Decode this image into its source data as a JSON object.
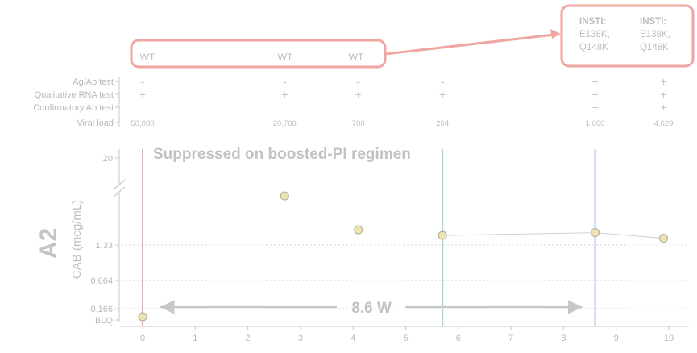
{
  "panel_label": "A2",
  "annotation_title": "Suppressed on boosted-PI regimen",
  "interval_label": "8.6 W",
  "genotype_boxes": {
    "left": [
      "WT",
      "WT",
      "WT"
    ],
    "right": [
      [
        "INSTI:",
        "E138K,",
        "Q148K"
      ],
      [
        "INSTI:",
        "E138K,",
        "Q148K"
      ]
    ]
  },
  "test_table": {
    "row_labels": [
      "Ag/Ab test",
      "Qualitative RNA test",
      "Confirmatory Ab test",
      "Viral load"
    ],
    "columns": [
      {
        "x": 0,
        "agab": "-",
        "rna": "+",
        "confirm": "",
        "viral_load": "50,080"
      },
      {
        "x": 2.7,
        "agab": "-",
        "rna": "+",
        "confirm": "",
        "viral_load": "20,760"
      },
      {
        "x": 4.1,
        "agab": "-",
        "rna": "+",
        "confirm": "",
        "viral_load": "700"
      },
      {
        "x": 5.7,
        "agab": "-",
        "rna": "+",
        "confirm": "",
        "viral_load": "204"
      },
      {
        "x": 8.6,
        "agab": "+",
        "rna": "+",
        "confirm": "+",
        "viral_load": "1,660"
      },
      {
        "x": 9.9,
        "agab": "+",
        "rna": "+",
        "confirm": "+",
        "viral_load": "4,629"
      }
    ]
  },
  "colors": {
    "red_line": "#f2a8a3",
    "green_line": "#a7dccd",
    "blue_line": "#a9c6e6",
    "box_border": "#f0a6a0",
    "point_fill": "#ece4b4",
    "point_stroke": "#b9b39e",
    "arrow": "#c8c8c8"
  },
  "chart_data": {
    "type": "scatter",
    "xlabel": "",
    "ylabel": "CAB (mcg/mL)",
    "xlim": [
      0,
      10
    ],
    "x_ticks": [
      0,
      1,
      2,
      3,
      4,
      5,
      6,
      7,
      8,
      9,
      10
    ],
    "y_tick_labels": [
      "20",
      "1.33",
      "0.664",
      "0.166",
      "BLQ"
    ],
    "y_reference_values": [
      1.33,
      0.664,
      0.166
    ],
    "series": [
      {
        "points": [
          {
            "x": 0,
            "y": "BLQ"
          },
          {
            "x": 2.7,
            "y": 2.2
          },
          {
            "x": 4.1,
            "y": 1.6
          },
          {
            "x": 5.7,
            "y": 1.5
          },
          {
            "x": 8.6,
            "y": 1.55
          },
          {
            "x": 9.9,
            "y": 1.45
          }
        ],
        "connected_from_x": 5.7
      }
    ],
    "vertical_lines": [
      {
        "x": 0,
        "color": "red"
      },
      {
        "x": 5.7,
        "color": "green"
      },
      {
        "x": 8.6,
        "color": "blue"
      }
    ],
    "interval": {
      "from": 0,
      "to": 8.6,
      "label": "8.6 W"
    }
  }
}
